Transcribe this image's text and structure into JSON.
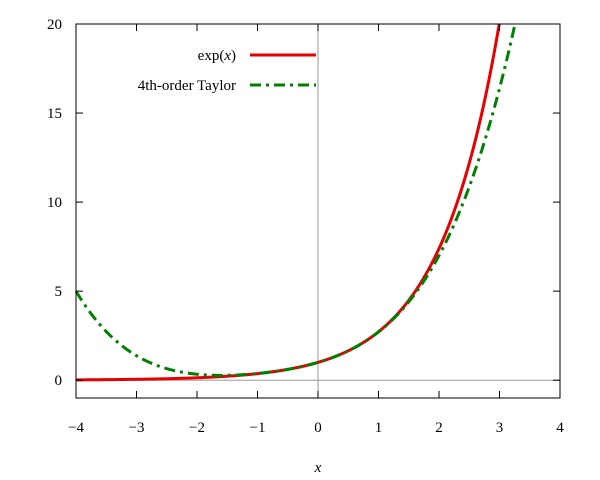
{
  "chart_data": {
    "type": "line",
    "xlabel": "x",
    "ylabel": "",
    "xlim": [
      -4,
      4
    ],
    "ylim": [
      -1,
      20
    ],
    "xticks": [
      -4,
      -3,
      -2,
      -1,
      0,
      1,
      2,
      3,
      4
    ],
    "xtick_labels": [
      "−4",
      "−3",
      "−2",
      "−1",
      "0",
      "1",
      "2",
      "3",
      "4"
    ],
    "yticks": [
      0,
      5,
      10,
      15,
      20
    ],
    "ytick_labels": [
      "0",
      "5",
      "10",
      "15",
      "20"
    ],
    "grid": false,
    "zero_lines": true,
    "legend_position": "top-center",
    "series": [
      {
        "name": "exp(x)",
        "legend_prefix": "exp(",
        "legend_var": "x",
        "legend_suffix": ")",
        "function": "exp",
        "color": "#e60000",
        "dash": "solid",
        "x": [
          -4,
          -3,
          -2,
          -1,
          0,
          1,
          2,
          2.5,
          3
        ],
        "values": [
          0.018,
          0.05,
          0.135,
          0.368,
          1.0,
          2.718,
          7.389,
          12.182,
          20.0
        ]
      },
      {
        "name": "4th-order Taylor",
        "function": "taylor4",
        "color": "#008000",
        "dash": "dashdot",
        "x": [
          -4,
          -3,
          -2,
          -1,
          0,
          1,
          2,
          3,
          3.29
        ],
        "values": [
          5.0,
          1.375,
          0.333,
          0.375,
          1.0,
          2.708,
          7.0,
          16.375,
          20.0
        ]
      }
    ]
  }
}
